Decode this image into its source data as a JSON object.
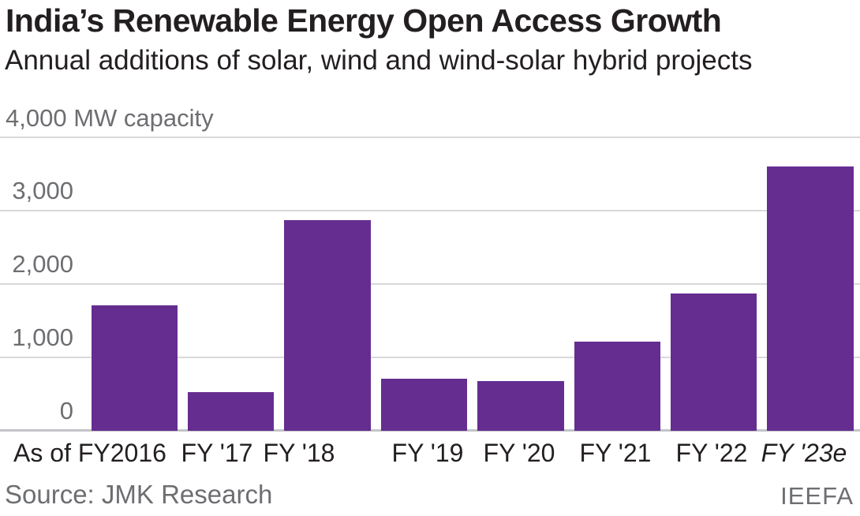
{
  "header": {
    "title": "India’s Renewable Energy Open Access Growth",
    "subtitle": "Annual additions of solar, wind and wind-solar hybrid projects"
  },
  "footer": {
    "source": "Source: JMK Research",
    "credit": "IEEFA"
  },
  "colors": {
    "bar": "#662D91",
    "grid": "#d9d9db",
    "axis": "#c3c5c7",
    "text_dark": "#231f20",
    "text_gray": "#6d6e71"
  },
  "chart_data": {
    "type": "bar",
    "title": "India’s Renewable Energy Open Access Growth",
    "subtitle": "Annual additions of solar, wind and wind-solar hybrid projects",
    "categories": [
      "As of FY2016",
      "FY '17",
      "FY '18",
      "FY '19",
      "FY '20",
      "FY '21",
      "FY '22",
      "FY '23e"
    ],
    "values": [
      1710,
      525,
      2870,
      710,
      680,
      1220,
      1870,
      3610
    ],
    "italic_categories": [
      "FY '23e"
    ],
    "unit_top_label": "4,000 MW capacity",
    "y_ticks": [
      {
        "value": 3000,
        "label": "3,000"
      },
      {
        "value": 2000,
        "label": "2,000"
      },
      {
        "value": 1000,
        "label": "1,000"
      },
      {
        "value": 0,
        "label": "0"
      }
    ],
    "ylim": [
      0,
      4000
    ],
    "xlabel": "",
    "ylabel": "MW capacity",
    "grid": true,
    "legend": false,
    "bar_color": "#662D91"
  }
}
